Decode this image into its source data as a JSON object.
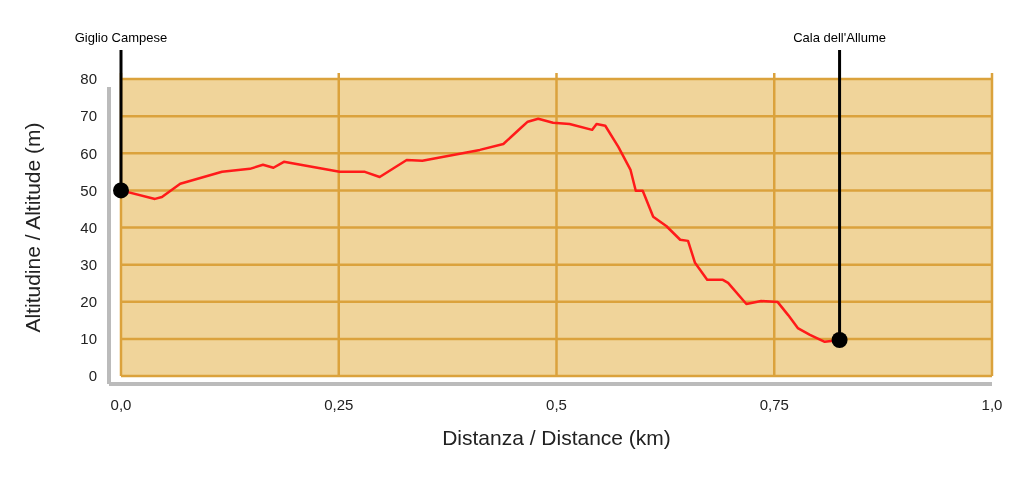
{
  "chart_data": {
    "type": "line",
    "xlabel": "Distanza / Distance (km)",
    "ylabel": "Altitudine / Altitude (m)",
    "x": [
      0,
      0.039,
      0.047,
      0.068,
      0.116,
      0.148,
      0.163,
      0.175,
      0.187,
      0.251,
      0.28,
      0.297,
      0.328,
      0.346,
      0.412,
      0.439,
      0.458,
      0.467,
      0.479,
      0.496,
      0.515,
      0.541,
      0.546,
      0.556,
      0.571,
      0.585,
      0.591,
      0.599,
      0.611,
      0.626,
      0.642,
      0.651,
      0.659,
      0.673,
      0.691,
      0.697,
      0.718,
      0.735,
      0.754,
      0.766,
      0.777,
      0.791,
      0.808,
      0.825
    ],
    "series": [
      {
        "color": "#ff1a1a",
        "values": [
          50,
          47.7,
          48.2,
          51.8,
          55,
          55.8,
          56.9,
          56.1,
          57.7,
          55,
          55,
          53.6,
          58.2,
          58,
          60.9,
          62.5,
          66.6,
          68.5,
          69.3,
          68.2,
          67.9,
          66.3,
          67.9,
          67.4,
          61.7,
          55.5,
          49.9,
          49.9,
          42.9,
          40.4,
          36.7,
          36.4,
          30.5,
          25.9,
          25.9,
          25.1,
          19.4,
          20.2,
          19.9,
          16.4,
          12.9,
          11.1,
          9.2,
          9.7
        ]
      }
    ],
    "xlim": [
      0,
      1
    ],
    "xticks": [
      {
        "value": 0,
        "label": "0,0"
      },
      {
        "value": 0.25,
        "label": "0,25"
      },
      {
        "value": 0.5,
        "label": "0,5"
      },
      {
        "value": 0.75,
        "label": "0,75"
      },
      {
        "value": 1,
        "label": "1,0"
      }
    ],
    "ylim": [
      0,
      80
    ],
    "yticks": [
      0,
      10,
      20,
      30,
      40,
      50,
      60,
      70,
      80
    ],
    "grid": true,
    "marker": "none",
    "line_style": "solid",
    "annotations": [
      {
        "text": "Giglio Campese",
        "x": 0,
        "y": 50
      },
      {
        "text": "Cala dell'Allume",
        "x": 0.825,
        "y": 9.7
      }
    ]
  }
}
